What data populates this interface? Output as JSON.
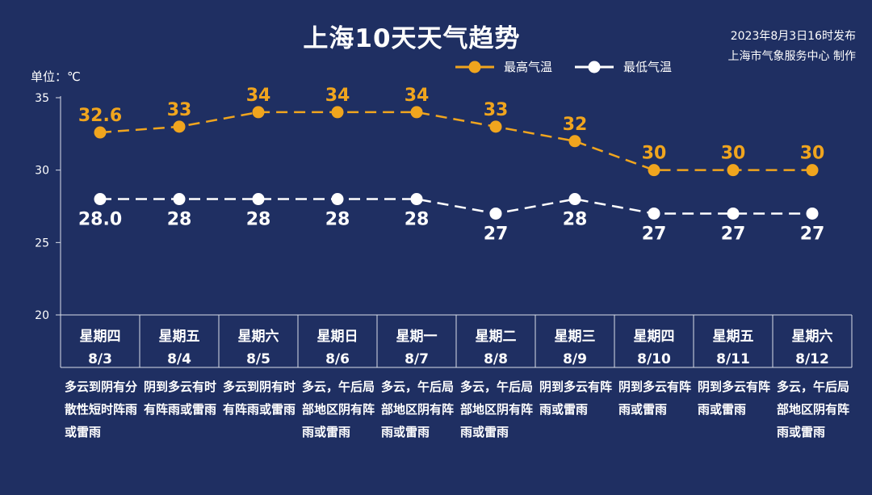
{
  "header": {
    "title": "上海10天天气趋势",
    "issue_date": "2023年8月3日16时发布",
    "issuer": "上海市气象服务中心 制作",
    "unit": "单位：℃"
  },
  "legend": {
    "max_label": "最高气温",
    "min_label": "最低气温"
  },
  "colors": {
    "background": "#1f2f62",
    "max_series": "#f0a51e",
    "min_series": "#ffffff",
    "axis": "#d8dde8"
  },
  "days": [
    {
      "weekday": "星期四",
      "date": "8/3",
      "desc": "多云到阴有分散性短时阵雨或雷雨"
    },
    {
      "weekday": "星期五",
      "date": "8/4",
      "desc": "阴到多云有时有阵雨或雷雨"
    },
    {
      "weekday": "星期六",
      "date": "8/5",
      "desc": "多云到阴有时有阵雨或雷雨"
    },
    {
      "weekday": "星期日",
      "date": "8/6",
      "desc": "多云，午后局部地区阴有阵雨或雷雨"
    },
    {
      "weekday": "星期一",
      "date": "8/7",
      "desc": "多云，午后局部地区阴有阵雨或雷雨"
    },
    {
      "weekday": "星期二",
      "date": "8/8",
      "desc": "多云，午后局部地区阴有阵雨或雷雨"
    },
    {
      "weekday": "星期三",
      "date": "8/9",
      "desc": "阴到多云有阵雨或雷雨"
    },
    {
      "weekday": "星期四",
      "date": "8/10",
      "desc": "阴到多云有阵雨或雷雨"
    },
    {
      "weekday": "星期五",
      "date": "8/11",
      "desc": "阴到多云有阵雨或雷雨"
    },
    {
      "weekday": "星期六",
      "date": "8/12",
      "desc": "多云，午后局部地区阴有阵雨或雷雨"
    }
  ],
  "chart_data": {
    "type": "line",
    "title": "上海10天天气趋势",
    "categories": [
      "8/3",
      "8/4",
      "8/5",
      "8/6",
      "8/7",
      "8/8",
      "8/9",
      "8/10",
      "8/11",
      "8/12"
    ],
    "ylabel": "单位：℃",
    "ylim": [
      20,
      35
    ],
    "yticks": [
      20,
      25,
      30,
      35
    ],
    "grid": false,
    "legend_position": "top-right",
    "series": [
      {
        "name": "最高气温",
        "values": [
          32.6,
          33,
          34,
          34,
          34,
          33,
          32,
          30,
          30,
          30
        ],
        "labels": [
          "32.6",
          "33",
          "34",
          "34",
          "34",
          "33",
          "32",
          "30",
          "30",
          "30"
        ]
      },
      {
        "name": "最低气温",
        "values": [
          28,
          28,
          28,
          28,
          28,
          27,
          28,
          27,
          27,
          27
        ],
        "labels": [
          "28.0",
          "28",
          "28",
          "28",
          "28",
          "27",
          "28",
          "27",
          "27",
          "27"
        ]
      }
    ]
  }
}
